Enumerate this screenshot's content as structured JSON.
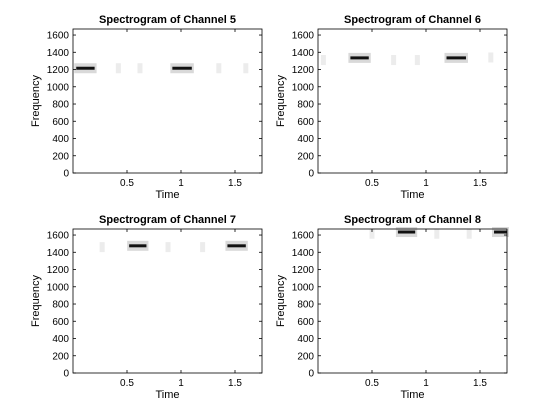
{
  "chart_data": [
    {
      "type": "heatmap",
      "title": "Spectrogram of Channel 5",
      "xlabel": "Time",
      "ylabel": "Frequency",
      "xlim": [
        0,
        1.75
      ],
      "ylim": [
        0,
        1670
      ],
      "xticks": [
        0.5,
        1,
        1.5
      ],
      "xtick_labels": [
        "0.5",
        "1",
        "1.5"
      ],
      "yticks": [
        0,
        200,
        400,
        600,
        800,
        1000,
        1200,
        1400,
        1600
      ],
      "ytick_labels": [
        "0",
        "200",
        "400",
        "600",
        "800",
        "1000",
        "1200",
        "1400",
        "1600"
      ],
      "segments": [
        {
          "t_start": 0.03,
          "t_end": 0.2,
          "frequency": 1215
        },
        {
          "t_start": 0.92,
          "t_end": 1.1,
          "frequency": 1215
        }
      ],
      "faint": [
        {
          "t": 0.42,
          "frequency": 1215
        },
        {
          "t": 0.62,
          "frequency": 1215
        },
        {
          "t": 1.35,
          "frequency": 1215
        },
        {
          "t": 1.6,
          "frequency": 1215
        }
      ]
    },
    {
      "type": "heatmap",
      "title": "Spectrogram of Channel 6",
      "xlabel": "Time",
      "ylabel": "Frequency",
      "xlim": [
        0,
        1.75
      ],
      "ylim": [
        0,
        1670
      ],
      "xticks": [
        0.5,
        1,
        1.5
      ],
      "xtick_labels": [
        "0.5",
        "1",
        "1.5"
      ],
      "yticks": [
        0,
        200,
        400,
        600,
        800,
        1000,
        1200,
        1400,
        1600
      ],
      "ytick_labels": [
        "0",
        "200",
        "400",
        "600",
        "800",
        "1000",
        "1200",
        "1400",
        "1600"
      ],
      "segments": [
        {
          "t_start": 0.3,
          "t_end": 0.47,
          "frequency": 1335
        },
        {
          "t_start": 1.19,
          "t_end": 1.37,
          "frequency": 1335
        }
      ],
      "faint": [
        {
          "t": 0.05,
          "frequency": 1310
        },
        {
          "t": 0.7,
          "frequency": 1310
        },
        {
          "t": 0.92,
          "frequency": 1310
        },
        {
          "t": 1.6,
          "frequency": 1340
        }
      ]
    },
    {
      "type": "heatmap",
      "title": "Spectrogram of Channel 7",
      "xlabel": "Time",
      "ylabel": "Frequency",
      "xlim": [
        0,
        1.75
      ],
      "ylim": [
        0,
        1670
      ],
      "xticks": [
        0.5,
        1,
        1.5
      ],
      "xtick_labels": [
        "0.5",
        "1",
        "1.5"
      ],
      "yticks": [
        0,
        200,
        400,
        600,
        800,
        1000,
        1200,
        1400,
        1600
      ],
      "ytick_labels": [
        "0",
        "200",
        "400",
        "600",
        "800",
        "1000",
        "1200",
        "1400",
        "1600"
      ],
      "segments": [
        {
          "t_start": 0.52,
          "t_end": 0.68,
          "frequency": 1475
        },
        {
          "t_start": 1.43,
          "t_end": 1.6,
          "frequency": 1475
        }
      ],
      "faint": [
        {
          "t": 0.27,
          "frequency": 1460
        },
        {
          "t": 0.88,
          "frequency": 1460
        },
        {
          "t": 1.2,
          "frequency": 1460
        }
      ]
    },
    {
      "type": "heatmap",
      "title": "Spectrogram of Channel 8",
      "xlabel": "Time",
      "ylabel": "Frequency",
      "xlim": [
        0,
        1.75
      ],
      "ylim": [
        0,
        1670
      ],
      "xticks": [
        0.5,
        1,
        1.5
      ],
      "xtick_labels": [
        "0.5",
        "1",
        "1.5"
      ],
      "yticks": [
        0,
        200,
        400,
        600,
        800,
        1000,
        1200,
        1400,
        1600
      ],
      "ytick_labels": [
        "0",
        "200",
        "400",
        "600",
        "800",
        "1000",
        "1200",
        "1400",
        "1600"
      ],
      "segments": [
        {
          "t_start": 0.74,
          "t_end": 0.9,
          "frequency": 1635
        },
        {
          "t_start": 1.63,
          "t_end": 1.75,
          "frequency": 1635
        }
      ],
      "faint": [
        {
          "t": 0.5,
          "frequency": 1615
        },
        {
          "t": 1.1,
          "frequency": 1615
        },
        {
          "t": 1.4,
          "frequency": 1615
        }
      ]
    }
  ]
}
